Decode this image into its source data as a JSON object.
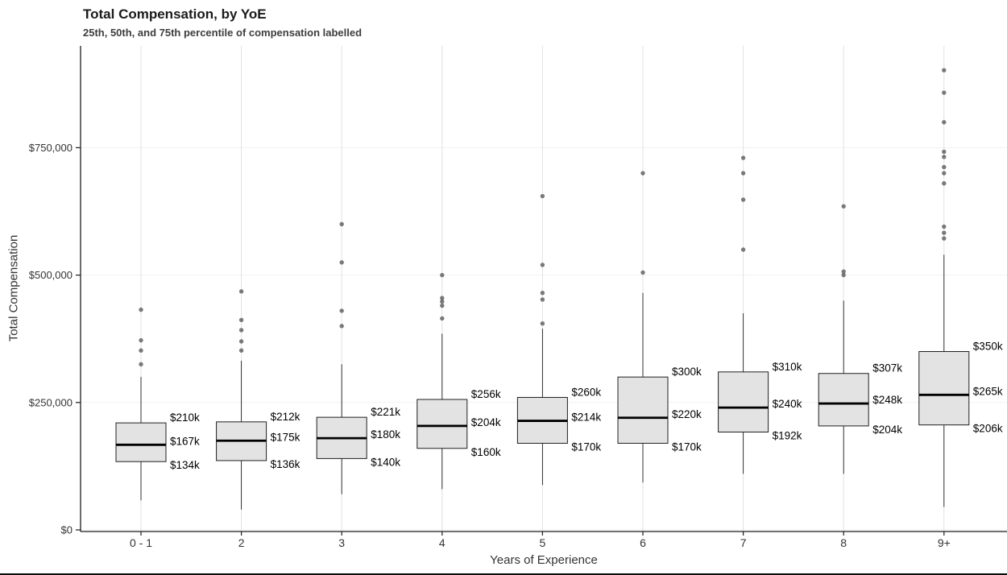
{
  "chart_data": {
    "type": "boxplot",
    "title": "Total Compensation, by YoE",
    "subtitle": "25th, 50th, and 75th percentile of compensation labelled",
    "xlabel": "Years of Experience",
    "ylabel": "Total Compensation",
    "ylim": [
      0,
      950000
    ],
    "grid": "faint vertical line at each category, very faint horizontal lines at y ticks",
    "legend": "none",
    "y_ticks": [
      {
        "value": 0,
        "label": "$0"
      },
      {
        "value": 250000,
        "label": "$250,000"
      },
      {
        "value": 500000,
        "label": "$500,000"
      },
      {
        "value": 750000,
        "label": "$750,000"
      }
    ],
    "categories": [
      "0 - 1",
      "2",
      "3",
      "4",
      "5",
      "6",
      "7",
      "8",
      "9+"
    ],
    "series": [
      {
        "category": "0 - 1",
        "whisker_low": 58000,
        "q1": 134000,
        "median": 167000,
        "q3": 210000,
        "whisker_high": 300000,
        "outliers": [
          325000,
          352000,
          372000,
          432000
        ],
        "labels": {
          "q1": "$134k",
          "median": "$167k",
          "q3": "$210k"
        }
      },
      {
        "category": "2",
        "whisker_low": 40000,
        "q1": 136000,
        "median": 175000,
        "q3": 212000,
        "whisker_high": 332000,
        "outliers": [
          352000,
          370000,
          392000,
          412000,
          468000
        ],
        "labels": {
          "q1": "$136k",
          "median": "$175k",
          "q3": "$212k"
        }
      },
      {
        "category": "3",
        "whisker_low": 70000,
        "q1": 140000,
        "median": 180000,
        "q3": 221000,
        "whisker_high": 325000,
        "outliers": [
          400000,
          430000,
          525000,
          600000
        ],
        "labels": {
          "q1": "$140k",
          "median": "$180k",
          "q3": "$221k"
        }
      },
      {
        "category": "4",
        "whisker_low": 80000,
        "q1": 160000,
        "median": 204000,
        "q3": 256000,
        "whisker_high": 385000,
        "outliers": [
          415000,
          440000,
          448000,
          455000,
          500000
        ],
        "labels": {
          "q1": "$160k",
          "median": "$204k",
          "q3": "$256k"
        }
      },
      {
        "category": "5",
        "whisker_low": 88000,
        "q1": 170000,
        "median": 214000,
        "q3": 260000,
        "whisker_high": 395000,
        "outliers": [
          405000,
          452000,
          465000,
          520000,
          655000
        ],
        "labels": {
          "q1": "$170k",
          "median": "$214k",
          "q3": "$260k"
        }
      },
      {
        "category": "6",
        "whisker_low": 93000,
        "q1": 170000,
        "median": 220000,
        "q3": 300000,
        "whisker_high": 465000,
        "outliers": [
          505000,
          700000
        ],
        "labels": {
          "q1": "$170k",
          "median": "$220k",
          "q3": "$300k"
        }
      },
      {
        "category": "7",
        "whisker_low": 110000,
        "q1": 192000,
        "median": 240000,
        "q3": 310000,
        "whisker_high": 425000,
        "outliers": [
          550000,
          648000,
          700000,
          730000
        ],
        "labels": {
          "q1": "$192k",
          "median": "$240k",
          "q3": "$310k"
        }
      },
      {
        "category": "8",
        "whisker_low": 110000,
        "q1": 204000,
        "median": 248000,
        "q3": 307000,
        "whisker_high": 450000,
        "outliers": [
          500000,
          507000,
          635000
        ],
        "labels": {
          "q1": "$204k",
          "median": "$248k",
          "q3": "$307k"
        }
      },
      {
        "category": "9+",
        "whisker_low": 45000,
        "q1": 206000,
        "median": 265000,
        "q3": 350000,
        "whisker_high": 540000,
        "outliers": [
          572000,
          583000,
          595000,
          680000,
          700000,
          712000,
          732000,
          742000,
          800000,
          858000,
          902000
        ],
        "labels": {
          "q1": "$206k",
          "median": "$265k",
          "q3": "$350k"
        }
      }
    ],
    "colors": {
      "box_fill": "#e3e3e3",
      "box_stroke": "#1f1f1f",
      "median": "#000000",
      "outlier": "#4f4f4f",
      "grid_v": "#e2e2e2",
      "grid_h": "#f1f1f1",
      "axis": "#1c1c1c",
      "tick_text": "#333333",
      "label_text": "#000000"
    }
  }
}
